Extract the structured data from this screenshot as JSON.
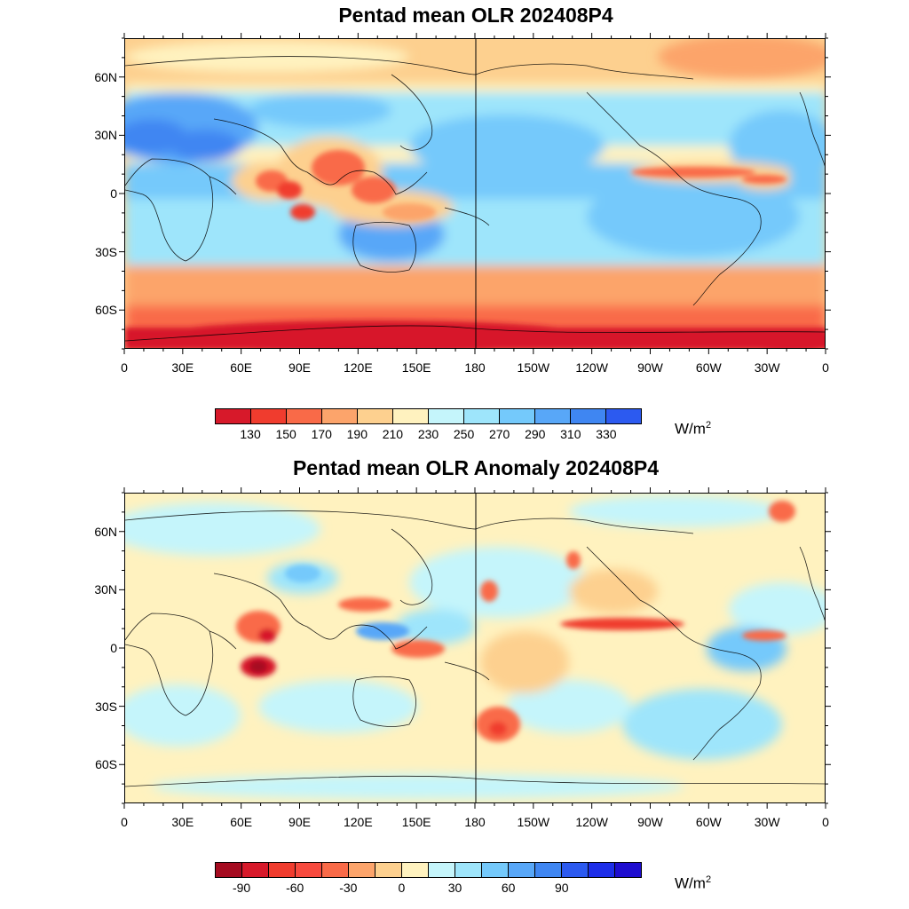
{
  "top_panel": {
    "title": "Pentad mean OLR 202408P4",
    "colorbar": {
      "labels": [
        "130",
        "150",
        "170",
        "190",
        "210",
        "230",
        "250",
        "270",
        "290",
        "310",
        "330"
      ],
      "colors": [
        "#d7192a",
        "#f03c2e",
        "#f96a48",
        "#fca46b",
        "#fdd08f",
        "#fff2bf",
        "#c5f5fb",
        "#9ee5fb",
        "#74c9fb",
        "#58a7f8",
        "#3f86f2",
        "#2c5af0"
      ],
      "units": "W/m",
      "units_exp": "2"
    }
  },
  "bottom_panel": {
    "title": "Pentad mean OLR Anomaly 202408P4",
    "colorbar": {
      "labels": [
        "-90",
        "-60",
        "-30",
        "0",
        "30",
        "60",
        "90"
      ],
      "label_slots": [
        1,
        3,
        5,
        7,
        9,
        11,
        13
      ],
      "colors": [
        "#a50b20",
        "#d7192a",
        "#f03c2e",
        "#f74a3e",
        "#f96a48",
        "#fca46b",
        "#fdd08f",
        "#fff2bf",
        "#c5f5fb",
        "#9ee5fb",
        "#74c9fb",
        "#58a7f8",
        "#3f86f2",
        "#2c5af0",
        "#1d2ee8",
        "#1e0dd0"
      ],
      "units": "W/m",
      "units_exp": "2"
    }
  },
  "axes": {
    "lon_labels": [
      "0",
      "30E",
      "60E",
      "90E",
      "120E",
      "150E",
      "180",
      "150W",
      "120W",
      "90W",
      "60W",
      "30W",
      "0"
    ],
    "lat_labels": [
      "60N",
      "30N",
      "0",
      "30S",
      "60S"
    ],
    "lat_values": [
      60,
      30,
      0,
      -30,
      -60
    ],
    "lat_range": [
      -80,
      80
    ],
    "lon_range": [
      0,
      360
    ]
  }
}
